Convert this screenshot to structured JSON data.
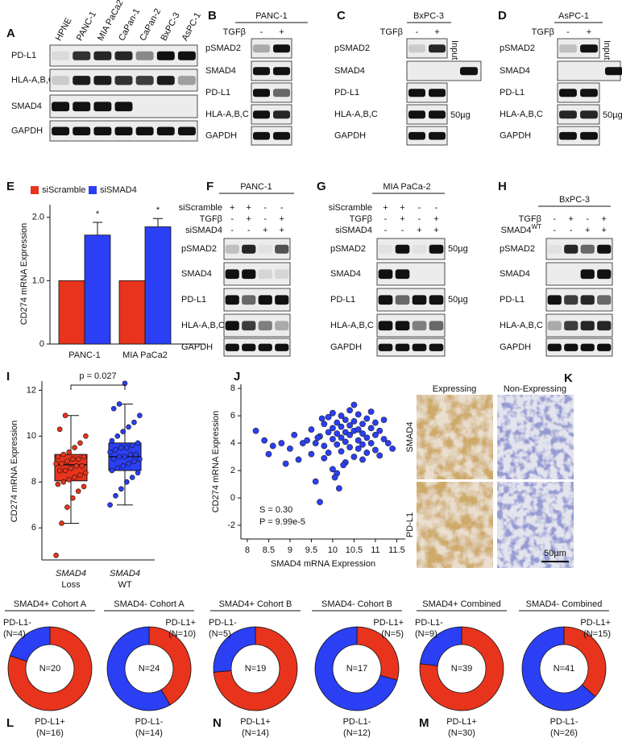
{
  "blots": [
    {
      "label": "A",
      "lanes": [
        "HPNE",
        "PANC-1",
        "MIA PaCa2",
        "CaPan-1",
        "CaPan-2",
        "BxPC-3",
        "AsPC-1"
      ],
      "rows": [
        "PD-L1",
        "HLA-A,B,C",
        "SMAD4",
        "GAPDH"
      ]
    },
    {
      "label": "B",
      "title": "PANC-1",
      "conditions": [
        {
          "name": "TGFβ",
          "signs": [
            "-",
            "+"
          ]
        }
      ],
      "rows": [
        "pSMAD2",
        "SMAD4",
        "PD-L1",
        "HLA-A,B,C",
        "GAPDH"
      ]
    },
    {
      "label": "C",
      "title": "BxPC-3",
      "conditions": [
        {
          "name": "TGFβ",
          "signs": [
            "-",
            "+"
          ]
        }
      ],
      "rows": [
        "pSMAD2",
        "SMAD4",
        "PD-L1",
        "HLA-A,B,C",
        "GAPDH"
      ],
      "notes": [
        "Input",
        "50µg"
      ]
    },
    {
      "label": "D",
      "title": "AsPC-1",
      "conditions": [
        {
          "name": "TGFβ",
          "signs": [
            "-",
            "+"
          ]
        }
      ],
      "rows": [
        "pSMAD2",
        "SMAD4",
        "PD-L1",
        "HLA-A,B,C",
        "GAPDH"
      ],
      "notes": [
        "Input",
        "50µg"
      ]
    },
    {
      "label": "F",
      "title": "PANC-1",
      "conditions": [
        {
          "name": "siScramble",
          "signs": [
            "+",
            "+",
            "-",
            "-"
          ]
        },
        {
          "name": "TGFβ",
          "signs": [
            "-",
            "+",
            "-",
            "+"
          ]
        },
        {
          "name": "siSMAD4",
          "signs": [
            "-",
            "-",
            "+",
            "+"
          ]
        }
      ],
      "rows": [
        "pSMAD2",
        "SMAD4",
        "PD-L1",
        "HLA-A,B,C",
        "GAPDH"
      ]
    },
    {
      "label": "G",
      "title": "MIA PaCa-2",
      "conditions": [
        {
          "name": "siScramble",
          "signs": [
            "+",
            "+",
            "-",
            "-"
          ]
        },
        {
          "name": "TGFβ",
          "signs": [
            "-",
            "+",
            "-",
            "+"
          ]
        },
        {
          "name": "siSMAD4",
          "signs": [
            "-",
            "-",
            "+",
            "+"
          ]
        }
      ],
      "rows": [
        "pSMAD2",
        "SMAD4",
        "PD-L1",
        "HLA-A,B,C",
        "GAPDH"
      ],
      "notes": [
        "50µg",
        "50µg"
      ]
    },
    {
      "label": "H",
      "title": "BxPC-3",
      "conditions": [
        {
          "name": "TGFβ",
          "signs": [
            "-",
            "+",
            "-",
            "+"
          ]
        },
        {
          "name": "SMAD4",
          "sup": "WT",
          "signs": [
            "-",
            "-",
            "+",
            "+"
          ]
        }
      ],
      "rows": [
        "pSMAD2",
        "SMAD4",
        "PD-L1",
        "HLA-A,B,C",
        "GAPDH"
      ]
    }
  ],
  "ihc": {
    "label": "K",
    "columns": [
      "Expressing",
      "Non-Expressing"
    ],
    "rows": [
      "SMAD4",
      "PD-L1"
    ],
    "scale_bar": "50µm"
  },
  "chart_data": [
    {
      "type": "bar",
      "label": "E",
      "ylabel": "CD274 mRNA Expression",
      "categories": [
        "PANC-1",
        "MIA PaCa2"
      ],
      "series": [
        {
          "name": "siScramble",
          "color": "#e8341c",
          "values": [
            1,
            1
          ]
        },
        {
          "name": "siSMAD4",
          "color": "#2b3ff5",
          "values": [
            1.72,
            1.85
          ],
          "errors": [
            0.2,
            0.13
          ],
          "annotations": [
            "*",
            "*"
          ]
        }
      ],
      "ylim": [
        0,
        2.2
      ],
      "yticks": [
        0,
        {
          "value": 1,
          "label": "1.0"
        },
        {
          "value": 2,
          "label": "2.0"
        }
      ]
    },
    {
      "type": "box",
      "label": "I",
      "ylabel": "CD274 mRNA Expression",
      "categories": [
        [
          "SMAD4",
          "Loss"
        ],
        [
          "SMAD4",
          "WT"
        ]
      ],
      "boxes": [
        {
          "color": "#e8341c",
          "whislo": 6.2,
          "q1": 8.05,
          "med": 8.75,
          "q3": 9.2,
          "whishi": 10.9,
          "points": [
            4.8,
            6.2,
            6.9,
            7.3,
            7.6,
            7.8,
            7.9,
            8.0,
            8.1,
            8.2,
            8.3,
            8.4,
            8.5,
            8.5,
            8.6,
            8.7,
            8.7,
            8.8,
            8.8,
            8.9,
            9.0,
            9.0,
            9.1,
            9.1,
            9.2,
            9.3,
            9.5,
            9.7,
            10.0,
            10.3,
            10.9
          ]
        },
        {
          "color": "#2b3ff5",
          "whislo": 7.0,
          "q1": 8.5,
          "med": 9.1,
          "q3": 9.7,
          "whishi": 11.4,
          "points": [
            7.0,
            7.4,
            7.7,
            8.0,
            8.2,
            8.4,
            8.5,
            8.6,
            8.7,
            8.8,
            8.9,
            9.0,
            9.0,
            9.1,
            9.1,
            9.2,
            9.2,
            9.3,
            9.4,
            9.5,
            9.5,
            9.6,
            9.7,
            9.8,
            10.0,
            10.2,
            10.4,
            10.6,
            10.9,
            11.2,
            11.4,
            12.3
          ]
        }
      ],
      "ylim": [
        4.6,
        12.4
      ],
      "yticks": [
        6,
        8,
        10,
        12
      ],
      "annotation": "p = 0.027"
    },
    {
      "type": "scatter",
      "label": "J",
      "xlabel": "SMAD4 mRNA Expression",
      "ylabel": "CD274 mRNA Expression",
      "color": "#2b3ff5",
      "x": [
        8.2,
        8.4,
        8.5,
        8.6,
        8.8,
        8.9,
        9.0,
        9.1,
        9.2,
        9.3,
        9.4,
        9.5,
        9.5,
        9.6,
        9.6,
        9.7,
        9.7,
        9.8,
        9.8,
        9.8,
        9.9,
        9.9,
        9.9,
        10.0,
        10.0,
        10.0,
        10.0,
        10.1,
        10.1,
        10.1,
        10.1,
        10.2,
        10.2,
        10.2,
        10.2,
        10.3,
        10.3,
        10.3,
        10.3,
        10.4,
        10.4,
        10.4,
        10.4,
        10.5,
        10.5,
        10.5,
        10.5,
        10.6,
        10.6,
        10.6,
        10.6,
        10.7,
        10.7,
        10.7,
        10.7,
        10.8,
        10.8,
        10.8,
        10.9,
        10.9,
        10.9,
        11.0,
        11.0,
        11.0,
        11.1,
        11.1,
        11.2,
        11.2,
        11.3,
        11.4,
        9.65,
        9.75,
        10.05,
        10.25,
        10.15
      ],
      "values": [
        4.9,
        4.2,
        3.2,
        3.8,
        4.0,
        2.5,
        3.6,
        4.6,
        2.8,
        4.0,
        4.2,
        3.2,
        5.0,
        4.0,
        1.2,
        -0.3,
        4.5,
        3.8,
        5.4,
        2.9,
        4.8,
        3.3,
        5.9,
        4.3,
        5.1,
        2.1,
        6.2,
        3.9,
        5.5,
        4.7,
        1.8,
        4.4,
        6.0,
        3.4,
        5.2,
        4.8,
        2.6,
        5.7,
        4.1,
        3.7,
        5.3,
        6.4,
        4.6,
        4.9,
        3.0,
        5.6,
        6.8,
        4.2,
        5.0,
        3.6,
        6.1,
        4.7,
        5.4,
        2.8,
        3.9,
        5.8,
        4.4,
        3.3,
        5.1,
        6.3,
        4.0,
        4.6,
        5.5,
        3.5,
        4.9,
        3.1,
        4.3,
        5.7,
        4.0,
        3.6,
        4.4,
        5.8,
        1.5,
        2.4,
        0.7
      ],
      "xlim": [
        7.85,
        11.7
      ],
      "ylim": [
        -3,
        8.3
      ],
      "xticks": [
        8,
        8.5,
        9,
        9.5,
        10,
        10.5,
        11,
        11.5
      ],
      "yticks": [
        -2,
        0,
        2,
        4,
        6,
        8
      ],
      "annotations": [
        "S = 0.30",
        "P = 9.99e-5"
      ]
    },
    {
      "type": "pie",
      "panel_label": "L",
      "title": "SMAD4+ Cohort A",
      "center_label": "N=20",
      "categories": [
        "PD-L1+",
        "PD-L1-"
      ],
      "values": [
        16,
        4
      ],
      "value_labels": [
        "(N=16)",
        "(N=4)"
      ],
      "colors": [
        "#e8341c",
        "#2b3ff5"
      ]
    },
    {
      "type": "pie",
      "title": "SMAD4- Cohort A",
      "center_label": "N=24",
      "categories": [
        "PD-L1+",
        "PD-L1-"
      ],
      "values": [
        10,
        14
      ],
      "value_labels": [
        "(N=10)",
        "(N=14)"
      ],
      "colors": [
        "#e8341c",
        "#2b3ff5"
      ]
    },
    {
      "type": "pie",
      "panel_label": "N",
      "title": "SMAD4+ Cohort B",
      "center_label": "N=19",
      "categories": [
        "PD-L1+",
        "PD-L1-"
      ],
      "values": [
        14,
        5
      ],
      "value_labels": [
        "(N=14)",
        "(N=5)"
      ],
      "colors": [
        "#e8341c",
        "#2b3ff5"
      ]
    },
    {
      "type": "pie",
      "title": "SMAD4- Cohort B",
      "center_label": "N=17",
      "categories": [
        "PD-L1+",
        "PD-L1-"
      ],
      "values": [
        5,
        12
      ],
      "value_labels": [
        "(N=5)",
        "(N=12)"
      ],
      "colors": [
        "#e8341c",
        "#2b3ff5"
      ]
    },
    {
      "type": "pie",
      "panel_label": "M",
      "title": "SMAD4+ Combined",
      "center_label": "N=39",
      "categories": [
        "PD-L1+",
        "PD-L1-"
      ],
      "values": [
        30,
        9
      ],
      "value_labels": [
        "(N=30)",
        "(N=9)"
      ],
      "colors": [
        "#e8341c",
        "#2b3ff5"
      ]
    },
    {
      "type": "pie",
      "title": "SMAD4- Combined",
      "center_label": "N=41",
      "categories": [
        "PD-L1+",
        "PD-L1-"
      ],
      "values": [
        15,
        26
      ],
      "value_labels": [
        "(N=15)",
        "(N=26)"
      ],
      "colors": [
        "#e8341c",
        "#2b3ff5"
      ]
    }
  ]
}
